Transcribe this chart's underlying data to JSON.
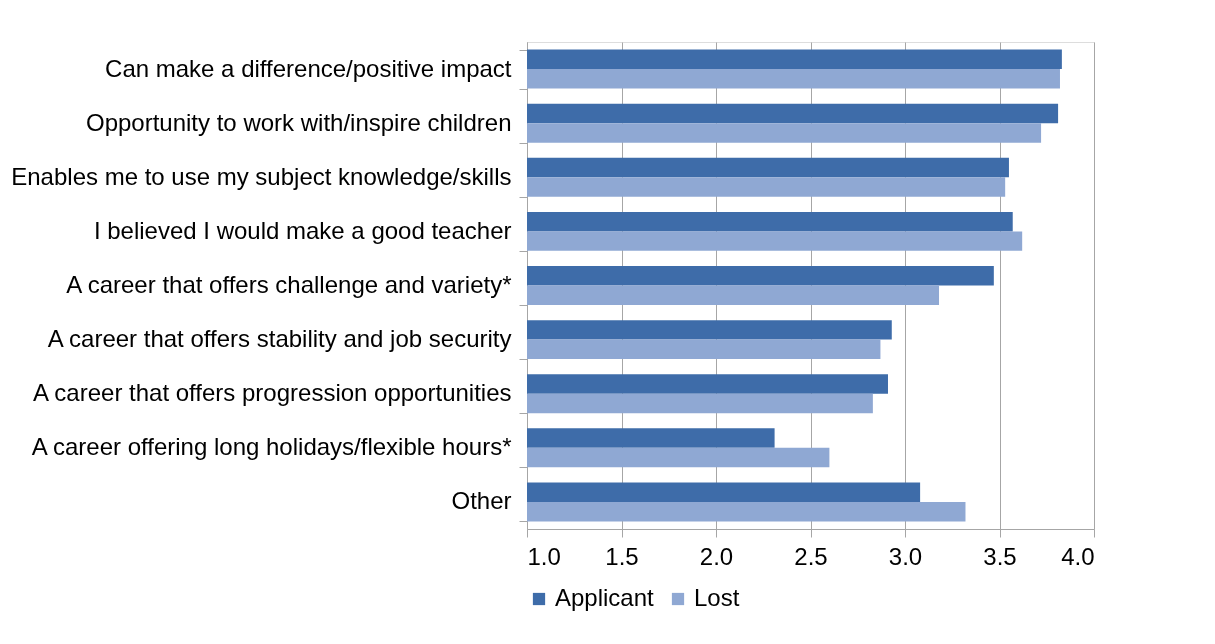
{
  "chart_data": {
    "type": "bar",
    "orientation": "horizontal",
    "categories": [
      "Can make a difference/positive impact",
      "Opportunity to work with/inspire children",
      "Enables me to use my subject knowledge/skills",
      "I believed I would make a good teacher",
      "A career that offers challenge and variety*",
      "A career that offers stability and job security",
      "A career that offers progression opportunities",
      "A career offering long holidays/flexible hours*",
      "Other"
    ],
    "series": [
      {
        "name": "Applicant",
        "color": "#3e6ca9",
        "values": [
          3.83,
          3.81,
          3.55,
          3.57,
          3.47,
          2.93,
          2.91,
          2.31,
          3.08
        ]
      },
      {
        "name": "Lost",
        "color": "#8fa8d3",
        "values": [
          3.82,
          3.72,
          3.53,
          3.62,
          3.18,
          2.87,
          2.83,
          2.6,
          3.32
        ]
      }
    ],
    "xlim": [
      1.0,
      4.0
    ],
    "xticks": [
      {
        "value": 1.0,
        "label": "1.0"
      },
      {
        "value": 1.5,
        "label": "1.5"
      },
      {
        "value": 2.0,
        "label": "2.0"
      },
      {
        "value": 2.5,
        "label": "2.5"
      },
      {
        "value": 3.0,
        "label": "3.0"
      },
      {
        "value": 3.5,
        "label": "3.5"
      },
      {
        "value": 4.0,
        "label": "4.0"
      }
    ],
    "grid": "x",
    "legend": "bottom"
  }
}
